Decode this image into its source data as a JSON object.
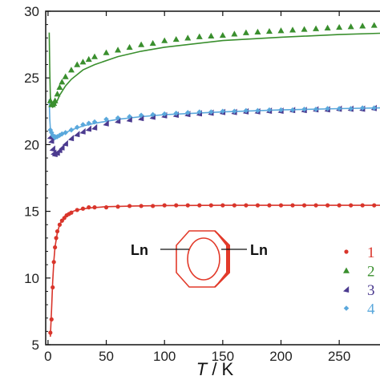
{
  "chart_data": {
    "type": "scatter",
    "title": "",
    "xlabel_italic": "T",
    "xlabel_rest": " / K",
    "ylabel": "",
    "xlim": [
      -2,
      285
    ],
    "ylim": [
      5,
      30
    ],
    "xticks": [
      "0",
      "50",
      "100",
      "150",
      "200",
      "250"
    ],
    "yticks": [
      "5",
      "10",
      "15",
      "20",
      "25",
      "30"
    ],
    "legend_position": "bottom-right",
    "inset": {
      "left_label": "Ln",
      "right_label": "Ln",
      "color": "#e23a2a"
    },
    "series": [
      {
        "name": "1",
        "marker": "circle",
        "color": "#d9352b",
        "x": [
          2,
          3,
          4,
          5,
          6,
          7,
          8,
          10,
          12,
          14,
          16,
          18,
          20,
          25,
          30,
          35,
          40,
          50,
          60,
          70,
          80,
          90,
          100,
          110,
          120,
          130,
          140,
          150,
          160,
          170,
          180,
          190,
          200,
          210,
          220,
          230,
          240,
          250,
          260,
          270,
          280
        ],
        "y": [
          5.9,
          6.9,
          9.3,
          11.2,
          12.3,
          13.0,
          13.5,
          14.0,
          14.3,
          14.5,
          14.7,
          14.8,
          14.9,
          15.1,
          15.2,
          15.3,
          15.3,
          15.3,
          15.35,
          15.4,
          15.4,
          15.4,
          15.45,
          15.45,
          15.45,
          15.45,
          15.45,
          15.45,
          15.45,
          15.45,
          15.45,
          15.45,
          15.45,
          15.45,
          15.45,
          15.45,
          15.45,
          15.45,
          15.45,
          15.45,
          15.45
        ],
        "fit_x": [
          2,
          3,
          4,
          5,
          6,
          8,
          10,
          14,
          18,
          25,
          35,
          50,
          75,
          100,
          150,
          200,
          250,
          285
        ],
        "fit_y": [
          5.6,
          7.6,
          9.7,
          11.3,
          12.3,
          13.4,
          14.0,
          14.6,
          14.9,
          15.1,
          15.25,
          15.35,
          15.4,
          15.43,
          15.45,
          15.45,
          15.45,
          15.45
        ]
      },
      {
        "name": "2",
        "marker": "triangle",
        "color": "#3a8f2e",
        "x": [
          2,
          3,
          4,
          5,
          6,
          8,
          10,
          12,
          15,
          20,
          25,
          30,
          35,
          40,
          50,
          60,
          70,
          80,
          90,
          100,
          110,
          120,
          130,
          140,
          150,
          160,
          170,
          180,
          190,
          200,
          210,
          220,
          230,
          240,
          250,
          260,
          270,
          280
        ],
        "y": [
          23.3,
          23.0,
          23.0,
          23.1,
          23.3,
          23.8,
          24.3,
          24.7,
          25.1,
          25.6,
          26.0,
          26.2,
          26.4,
          26.6,
          26.9,
          27.1,
          27.3,
          27.5,
          27.6,
          27.8,
          27.9,
          28.0,
          28.1,
          28.15,
          28.2,
          28.3,
          28.4,
          28.45,
          28.5,
          28.55,
          28.6,
          28.65,
          28.7,
          28.75,
          28.8,
          28.85,
          28.9,
          28.95
        ],
        "fit_x": [
          1,
          1.5,
          2,
          3,
          4,
          5,
          6,
          8,
          10,
          15,
          20,
          30,
          40,
          60,
          80,
          100,
          150,
          200,
          250,
          285
        ],
        "fit_y": [
          28.4,
          25.5,
          23.6,
          22.9,
          22.8,
          22.9,
          23.0,
          23.3,
          23.7,
          24.4,
          24.9,
          25.6,
          26.0,
          26.6,
          27.0,
          27.3,
          27.8,
          28.05,
          28.25,
          28.35
        ]
      },
      {
        "name": "3",
        "marker": "triangle-left",
        "color": "#4b3a8f",
        "x": [
          2,
          3,
          4,
          5,
          6,
          8,
          10,
          12,
          15,
          20,
          25,
          30,
          35,
          40,
          50,
          60,
          70,
          80,
          90,
          100,
          110,
          120,
          130,
          140,
          150,
          160,
          170,
          180,
          190,
          200,
          210,
          220,
          230,
          240,
          250,
          260,
          270,
          280
        ],
        "y": [
          20.6,
          20.3,
          19.7,
          19.4,
          19.3,
          19.4,
          19.6,
          19.8,
          20.1,
          20.5,
          20.8,
          21.0,
          21.2,
          21.3,
          21.6,
          21.8,
          21.9,
          22.0,
          22.1,
          22.2,
          22.25,
          22.3,
          22.35,
          22.4,
          22.45,
          22.45,
          22.5,
          22.5,
          22.55,
          22.55,
          22.6,
          22.6,
          22.65,
          22.65,
          22.7,
          22.7,
          22.7,
          22.75
        ]
      },
      {
        "name": "4",
        "marker": "diamond",
        "color": "#5aa8dc",
        "x": [
          2,
          3,
          4,
          5,
          6,
          8,
          10,
          12,
          15,
          20,
          25,
          30,
          35,
          40,
          50,
          60,
          70,
          80,
          90,
          100,
          110,
          120,
          130,
          140,
          150,
          160,
          170,
          180,
          190,
          200,
          210,
          220,
          230,
          240,
          250,
          260,
          270,
          280
        ],
        "y": [
          21.1,
          20.9,
          20.7,
          20.6,
          20.6,
          20.6,
          20.7,
          20.8,
          20.9,
          21.1,
          21.3,
          21.5,
          21.6,
          21.7,
          21.9,
          22.0,
          22.1,
          22.2,
          22.25,
          22.3,
          22.35,
          22.4,
          22.45,
          22.45,
          22.5,
          22.5,
          22.55,
          22.55,
          22.6,
          22.6,
          22.6,
          22.65,
          22.65,
          22.7,
          22.7,
          22.7,
          22.75,
          22.75
        ],
        "fit_x": [
          1,
          1.5,
          2,
          3,
          4,
          5,
          6,
          8,
          10,
          15,
          20,
          30,
          40,
          60,
          80,
          100,
          150,
          200,
          250,
          285
        ],
        "fit_y": [
          23.4,
          21.9,
          21.2,
          20.6,
          20.4,
          20.35,
          20.4,
          20.5,
          20.6,
          20.9,
          21.1,
          21.4,
          21.6,
          21.9,
          22.1,
          22.25,
          22.45,
          22.6,
          22.7,
          22.75
        ]
      }
    ]
  }
}
